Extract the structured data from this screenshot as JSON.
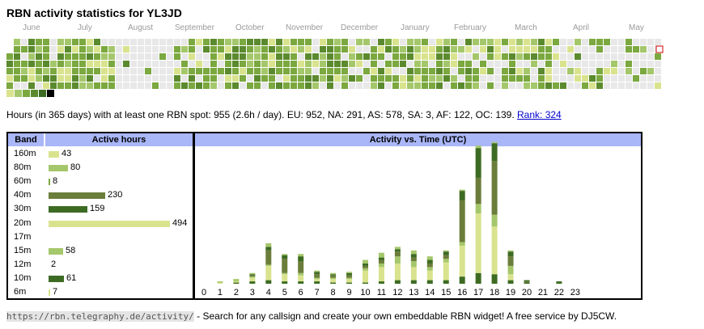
{
  "title": "RBN activity statistics for YL3JD",
  "months": [
    "June",
    "July",
    "August",
    "September",
    "October",
    "November",
    "December",
    "January",
    "February",
    "March",
    "April",
    "May"
  ],
  "palette": [
    "#e8e8e8",
    "#d9e38e",
    "#a5c76b",
    "#7ba83f",
    "#5b8a2e",
    "#3d6b23"
  ],
  "legend_colors": [
    "#d9e38e",
    "#a5c76b",
    "#7ba83f",
    "#5b8a2e",
    "#3d6b23",
    "#000000"
  ],
  "stats": {
    "text": "Hours (in 365 days) with at least one RBN spot: 955 (2.6h / day). EU: 952, NA: 291, AS: 578, SA: 3, AF: 122, OC: 139.",
    "rank_label": "Rank: 324"
  },
  "bands_panel": {
    "header_band": "Band",
    "header_hours": "Active hours",
    "rows": [
      {
        "band": "160m",
        "hours": 43,
        "label": "43",
        "color": "#d9e38e"
      },
      {
        "band": "80m",
        "hours": 80,
        "label": "80",
        "color": "#a5c76b"
      },
      {
        "band": "60m",
        "hours": 8,
        "label": "8",
        "color": "#7ba83f"
      },
      {
        "band": "40m",
        "hours": 230,
        "label": "230",
        "color": "#6b7d3a"
      },
      {
        "band": "30m",
        "hours": 159,
        "label": "159",
        "color": "#3d6b23"
      },
      {
        "band": "20m",
        "hours": 494,
        "label": "494",
        "color": "#d9e38e"
      },
      {
        "band": "17m",
        "hours": 0,
        "label": "",
        "color": "#a5c76b"
      },
      {
        "band": "15m",
        "hours": 58,
        "label": "58",
        "color": "#a5c76b"
      },
      {
        "band": "12m",
        "hours": 2,
        "label": "2",
        "color": "#7ba83f"
      },
      {
        "band": "10m",
        "hours": 61,
        "label": "61",
        "color": "#3d6b23"
      },
      {
        "band": "6m",
        "hours": 7,
        "label": "7",
        "color": "#d9e38e"
      }
    ]
  },
  "chart_data": {
    "type": "bar",
    "title": "Activity vs. Time (UTC)",
    "categories": [
      "0",
      "1",
      "2",
      "3",
      "4",
      "5",
      "6",
      "7",
      "8",
      "9",
      "10",
      "11",
      "12",
      "13",
      "14",
      "15",
      "16",
      "17",
      "18",
      "19",
      "20",
      "21",
      "22",
      "23"
    ],
    "series": [
      {
        "values": [
          0,
          0,
          1,
          2,
          3,
          2,
          2,
          2,
          1,
          1,
          1,
          2,
          3,
          3,
          3,
          3,
          6,
          9,
          8,
          3,
          1,
          0,
          1,
          0
        ],
        "color": "#3d6b23"
      },
      {
        "values": [
          0,
          1,
          1,
          3,
          12,
          6,
          5,
          2,
          3,
          3,
          10,
          12,
          14,
          11,
          8,
          15,
          26,
          50,
          40,
          5,
          0,
          0,
          0,
          0
        ],
        "color": "#d9e38e"
      },
      {
        "values": [
          0,
          0,
          1,
          1,
          1,
          1,
          2,
          1,
          1,
          1,
          2,
          3,
          6,
          5,
          3,
          3,
          3,
          8,
          10,
          7,
          0,
          0,
          0,
          0
        ],
        "color": "#a5c76b"
      },
      {
        "values": [
          0,
          0,
          0,
          1,
          12,
          12,
          10,
          3,
          2,
          2,
          2,
          3,
          4,
          3,
          3,
          3,
          35,
          22,
          45,
          8,
          1,
          0,
          0,
          0
        ],
        "color": "#6b7d3a"
      },
      {
        "values": [
          0,
          0,
          0,
          1,
          3,
          3,
          4,
          2,
          1,
          2,
          2,
          2,
          2,
          3,
          3,
          3,
          8,
          25,
          15,
          4,
          1,
          0,
          1,
          0
        ],
        "color": "#3d6b23"
      },
      {
        "values": [
          0,
          1,
          1,
          1,
          3,
          1,
          2,
          1,
          1,
          1,
          3,
          4,
          2,
          3,
          3,
          1,
          1,
          2,
          1,
          1,
          0,
          0,
          0,
          0
        ],
        "color": "#a5c76b"
      }
    ],
    "ylim": [
      0,
      110
    ]
  },
  "footer": {
    "url": "https://rbn.telegraphy.de/activity/",
    "text": " - Search for any callsign and create your own embeddable RBN widget! A free service by DJ5CW."
  }
}
